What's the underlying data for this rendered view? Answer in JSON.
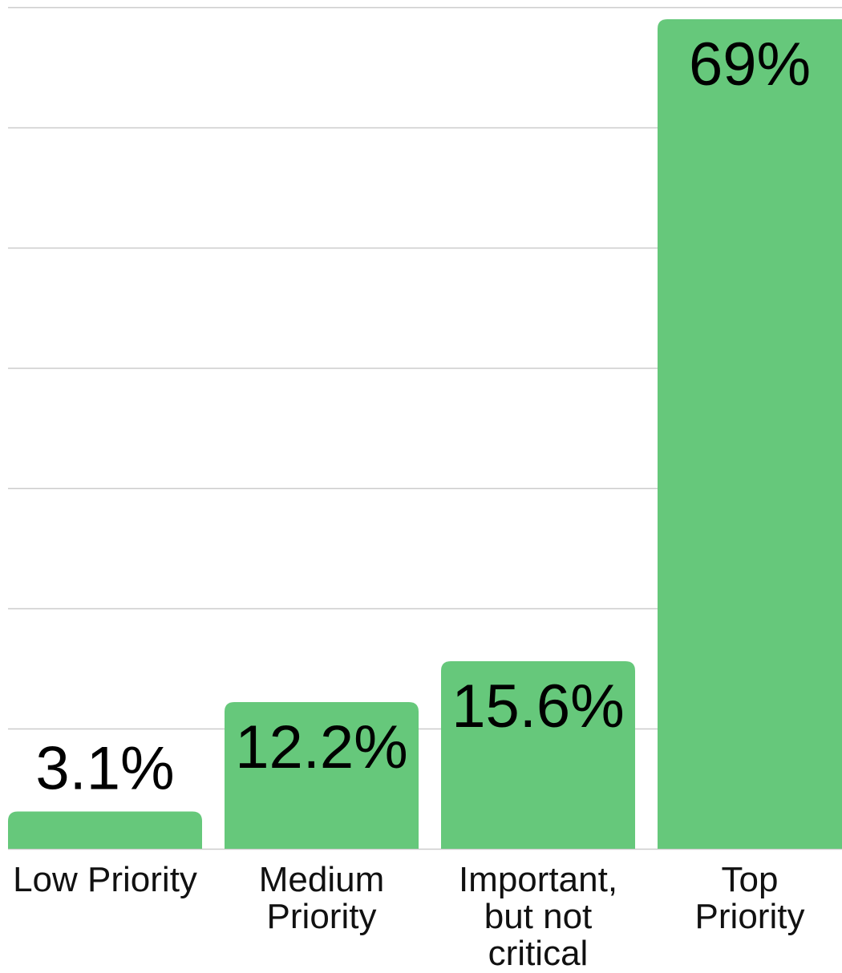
{
  "chart_data": {
    "type": "bar",
    "categories": [
      "Low Priority",
      "Medium Priority",
      "Important, but not critical",
      "Top Priority"
    ],
    "values": [
      3.1,
      12.2,
      15.6,
      69
    ],
    "value_labels": [
      "3.1%",
      "12.2%",
      "15.6%",
      "69%"
    ],
    "color": "#66c87b",
    "ylim": [
      0,
      70
    ],
    "yticks": [
      0,
      10,
      20,
      30,
      40,
      50,
      60,
      70
    ],
    "grid": true
  }
}
